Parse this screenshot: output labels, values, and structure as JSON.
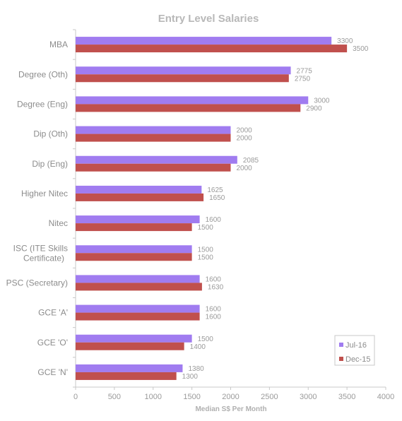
{
  "chart_data": {
    "type": "bar",
    "orientation": "horizontal",
    "title": "Entry Level Salaries",
    "xlabel": "Median  S$ Per Month",
    "ylabel": "",
    "xlim": [
      0,
      4000
    ],
    "xticks": [
      0,
      500,
      1000,
      1500,
      2000,
      2500,
      3000,
      3500,
      4000
    ],
    "categories": [
      "MBA",
      "Degree (Oth)",
      "Degree (Eng)",
      "Dip (Oth)",
      "Dip (Eng)",
      "Higher Nitec",
      "Nitec",
      "ISC (ITE Skills Certificate)",
      "PSC (Secretary)",
      "GCE 'A'",
      "GCE 'O'",
      "GCE 'N'"
    ],
    "category_lines": [
      [
        "MBA"
      ],
      [
        "Degree (Oth)"
      ],
      [
        "Degree (Eng)"
      ],
      [
        "Dip (Oth)"
      ],
      [
        "Dip (Eng)"
      ],
      [
        "Higher Nitec"
      ],
      [
        "Nitec"
      ],
      [
        "ISC (ITE Skills",
        "Certificate)"
      ],
      [
        "PSC (Secretary)"
      ],
      [
        "GCE 'A'"
      ],
      [
        "GCE 'O'"
      ],
      [
        "GCE 'N'"
      ]
    ],
    "series": [
      {
        "name": "Jul-16",
        "color": "#a07cf0",
        "values": [
          3300,
          2775,
          3000,
          2000,
          2085,
          1625,
          1600,
          1500,
          1600,
          1600,
          1500,
          1380
        ]
      },
      {
        "name": "Dec-15",
        "color": "#c0504d",
        "values": [
          3500,
          2750,
          2900,
          2000,
          2000,
          1650,
          1500,
          1500,
          1630,
          1600,
          1400,
          1300
        ]
      }
    ],
    "grid": false,
    "legend_position": "bottom-right"
  }
}
